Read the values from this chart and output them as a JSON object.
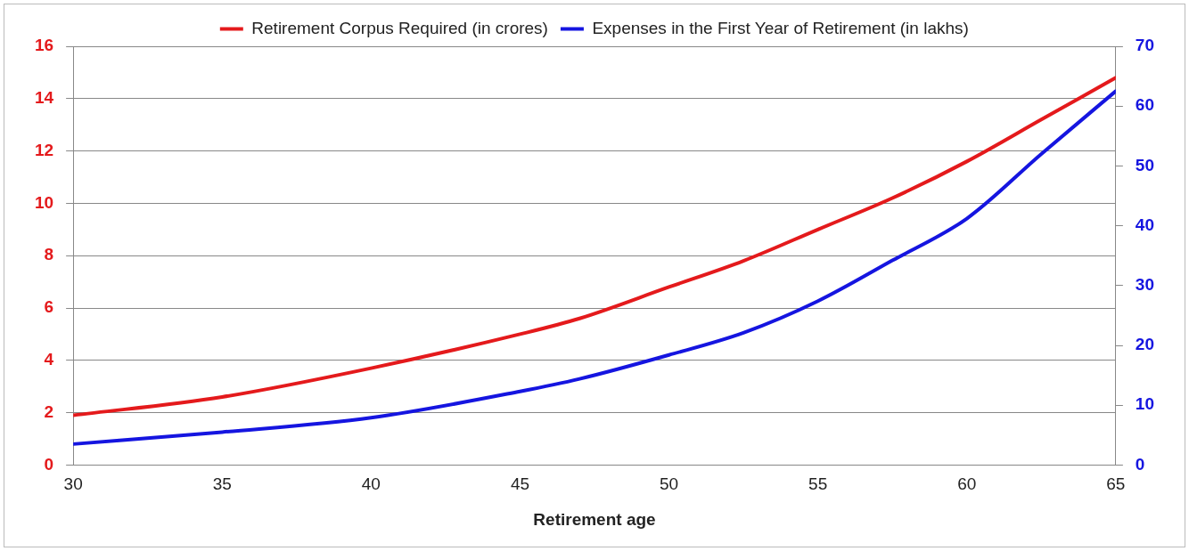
{
  "chart_data": {
    "type": "line",
    "xlabel": "Retirement age",
    "x": [
      30,
      35,
      40,
      45,
      47,
      50,
      52.5,
      55,
      57.5,
      60,
      62.5,
      65
    ],
    "series": [
      {
        "name": "Retirement Corpus Required (in crores)",
        "color": "#e41a1c",
        "values": [
          1.9,
          2.6,
          3.7,
          5.0,
          5.6,
          6.8,
          7.8,
          9.0,
          10.2,
          11.6,
          13.2,
          14.8
        ]
      },
      {
        "name": "Expenses in the First Year of Retirement (in lakhs)",
        "color": "#1515e0",
        "axis": "y2",
        "values": [
          3.5,
          5.5,
          7.9,
          12.3,
          14.4,
          18.4,
          22.1,
          27.4,
          34.2,
          41.2,
          52,
          62.5
        ]
      }
    ],
    "xlim": [
      30,
      65
    ],
    "xticks": [
      30,
      35,
      40,
      45,
      50,
      55,
      60,
      65
    ],
    "ylim": [
      0,
      16
    ],
    "yticks": [
      0,
      2,
      4,
      6,
      8,
      10,
      12,
      14,
      16
    ],
    "y2lim": [
      0,
      70
    ],
    "y2ticks": [
      0,
      10,
      20,
      30,
      40,
      50,
      60,
      70
    ],
    "grid": "y",
    "legend": "top",
    "marker": "none",
    "line_style": "solid"
  }
}
